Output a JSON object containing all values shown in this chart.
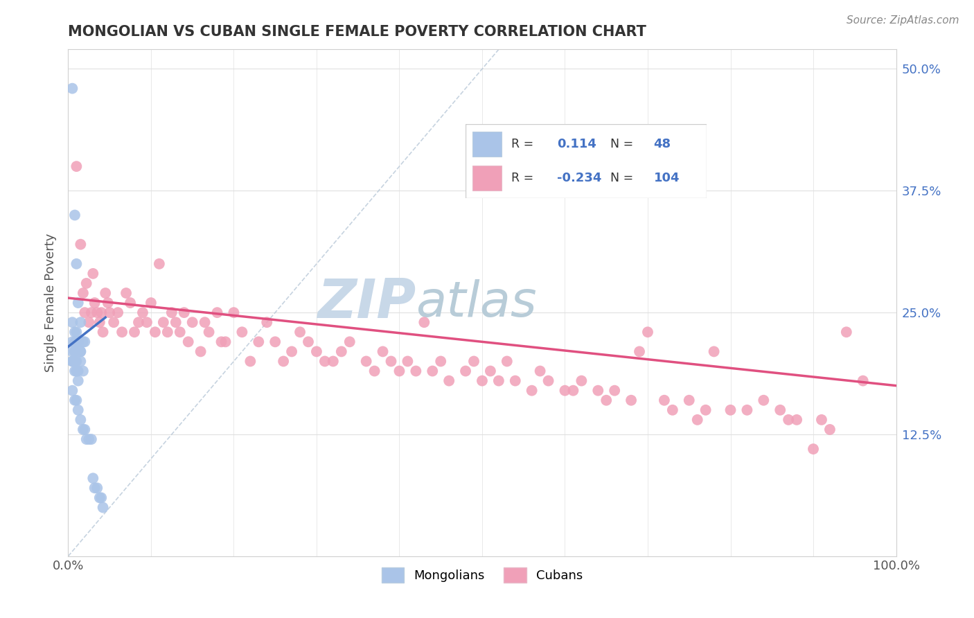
{
  "title": "MONGOLIAN VS CUBAN SINGLE FEMALE POVERTY CORRELATION CHART",
  "source_text": "Source: ZipAtlas.com",
  "ylabel": "Single Female Poverty",
  "xlim": [
    0.0,
    1.0
  ],
  "ylim": [
    0.0,
    0.52
  ],
  "yticks": [
    0.0,
    0.125,
    0.25,
    0.375,
    0.5
  ],
  "ytick_labels": [
    "",
    "12.5%",
    "25.0%",
    "37.5%",
    "50.0%"
  ],
  "r_mongolian": "0.114",
  "n_mongolian": "48",
  "r_cuban": "-0.234",
  "n_cuban": "104",
  "blue_color": "#aac4e8",
  "blue_line_color": "#4472c4",
  "pink_color": "#f0a0b8",
  "pink_line_color": "#e05080",
  "watermark_color": "#ccdce8",
  "background_color": "#ffffff",
  "grid_color": "#e0e0e0",
  "mongolian_x": [
    0.005,
    0.008,
    0.01,
    0.012,
    0.015,
    0.01,
    0.008,
    0.012,
    0.015,
    0.005,
    0.008,
    0.01,
    0.005,
    0.008,
    0.01,
    0.012,
    0.015,
    0.018,
    0.005,
    0.008,
    0.01,
    0.012,
    0.005,
    0.008,
    0.01,
    0.015,
    0.018,
    0.02,
    0.005,
    0.008,
    0.01,
    0.012,
    0.005,
    0.008,
    0.01,
    0.012,
    0.015,
    0.018,
    0.02,
    0.022,
    0.025,
    0.028,
    0.03,
    0.032,
    0.035,
    0.038,
    0.04,
    0.042
  ],
  "mongolian_y": [
    0.48,
    0.35,
    0.3,
    0.26,
    0.24,
    0.23,
    0.22,
    0.22,
    0.21,
    0.22,
    0.21,
    0.2,
    0.2,
    0.2,
    0.19,
    0.19,
    0.2,
    0.19,
    0.24,
    0.23,
    0.22,
    0.22,
    0.21,
    0.21,
    0.22,
    0.21,
    0.22,
    0.22,
    0.2,
    0.19,
    0.19,
    0.18,
    0.17,
    0.16,
    0.16,
    0.15,
    0.14,
    0.13,
    0.13,
    0.12,
    0.12,
    0.12,
    0.08,
    0.07,
    0.07,
    0.06,
    0.06,
    0.05
  ],
  "cuban_x": [
    0.01,
    0.015,
    0.018,
    0.02,
    0.022,
    0.025,
    0.028,
    0.03,
    0.032,
    0.035,
    0.038,
    0.04,
    0.042,
    0.045,
    0.048,
    0.05,
    0.055,
    0.06,
    0.065,
    0.07,
    0.075,
    0.08,
    0.085,
    0.09,
    0.095,
    0.1,
    0.105,
    0.11,
    0.115,
    0.12,
    0.125,
    0.13,
    0.135,
    0.14,
    0.145,
    0.15,
    0.16,
    0.165,
    0.17,
    0.18,
    0.185,
    0.19,
    0.2,
    0.21,
    0.22,
    0.23,
    0.24,
    0.25,
    0.26,
    0.27,
    0.28,
    0.29,
    0.3,
    0.31,
    0.32,
    0.33,
    0.34,
    0.36,
    0.37,
    0.38,
    0.39,
    0.4,
    0.41,
    0.42,
    0.43,
    0.44,
    0.45,
    0.46,
    0.48,
    0.49,
    0.5,
    0.51,
    0.52,
    0.53,
    0.54,
    0.56,
    0.57,
    0.58,
    0.6,
    0.61,
    0.62,
    0.64,
    0.65,
    0.66,
    0.68,
    0.69,
    0.7,
    0.72,
    0.73,
    0.75,
    0.76,
    0.77,
    0.78,
    0.8,
    0.82,
    0.84,
    0.86,
    0.87,
    0.88,
    0.9,
    0.91,
    0.92,
    0.94,
    0.96
  ],
  "cuban_y": [
    0.4,
    0.32,
    0.27,
    0.25,
    0.28,
    0.24,
    0.25,
    0.29,
    0.26,
    0.25,
    0.24,
    0.25,
    0.23,
    0.27,
    0.26,
    0.25,
    0.24,
    0.25,
    0.23,
    0.27,
    0.26,
    0.23,
    0.24,
    0.25,
    0.24,
    0.26,
    0.23,
    0.3,
    0.24,
    0.23,
    0.25,
    0.24,
    0.23,
    0.25,
    0.22,
    0.24,
    0.21,
    0.24,
    0.23,
    0.25,
    0.22,
    0.22,
    0.25,
    0.23,
    0.2,
    0.22,
    0.24,
    0.22,
    0.2,
    0.21,
    0.23,
    0.22,
    0.21,
    0.2,
    0.2,
    0.21,
    0.22,
    0.2,
    0.19,
    0.21,
    0.2,
    0.19,
    0.2,
    0.19,
    0.24,
    0.19,
    0.2,
    0.18,
    0.19,
    0.2,
    0.18,
    0.19,
    0.18,
    0.2,
    0.18,
    0.17,
    0.19,
    0.18,
    0.17,
    0.17,
    0.18,
    0.17,
    0.16,
    0.17,
    0.16,
    0.21,
    0.23,
    0.16,
    0.15,
    0.16,
    0.14,
    0.15,
    0.21,
    0.15,
    0.15,
    0.16,
    0.15,
    0.14,
    0.14,
    0.11,
    0.14,
    0.13,
    0.23,
    0.18
  ],
  "blue_trend_x": [
    0.0,
    0.045
  ],
  "blue_trend_y": [
    0.215,
    0.245
  ],
  "pink_trend_x": [
    0.0,
    1.0
  ],
  "pink_trend_y": [
    0.265,
    0.175
  ]
}
